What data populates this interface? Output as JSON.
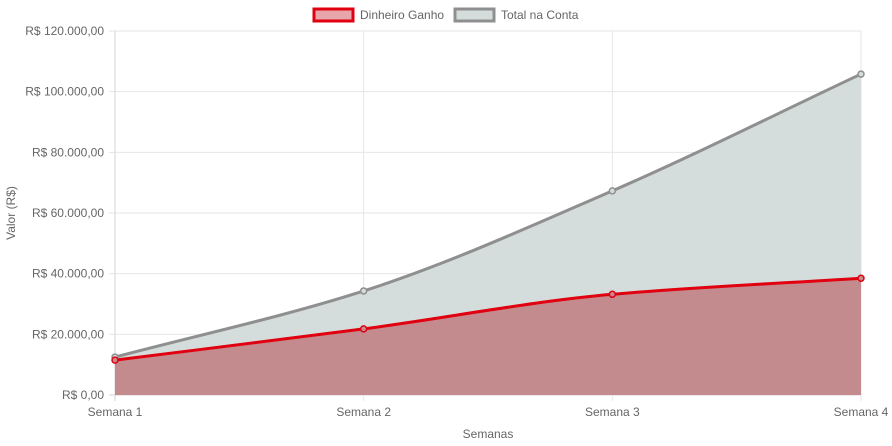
{
  "chart_data": {
    "type": "area",
    "title": "",
    "xlabel": "Semanas",
    "ylabel": "Valor (R$)",
    "categories": [
      "Semana 1",
      "Semana 2",
      "Semana 3",
      "Semana 4"
    ],
    "ylim": [
      0,
      120000
    ],
    "y_ticks": [
      0,
      20000,
      40000,
      60000,
      80000,
      100000,
      120000
    ],
    "y_tick_labels": [
      "R$ 0,00",
      "R$ 20.000,00",
      "R$ 40.000,00",
      "R$ 60.000,00",
      "R$ 80.000,00",
      "R$ 100.000,00",
      "R$ 120.000,00"
    ],
    "grid": true,
    "legend_position": "top-center",
    "series": [
      {
        "name": "Dinheiro Ganho",
        "values": [
          11500,
          21800,
          33200,
          38500
        ],
        "line_color": "#e0000f",
        "fill_color": "#c38b8e",
        "legend_fill": "#e8a6aa"
      },
      {
        "name": "Total na Conta",
        "values": [
          12500,
          34300,
          67300,
          105800
        ],
        "line_color": "#8f8f8f",
        "fill_color": "#d5dddc",
        "legend_fill": "#d5dddc"
      }
    ]
  }
}
